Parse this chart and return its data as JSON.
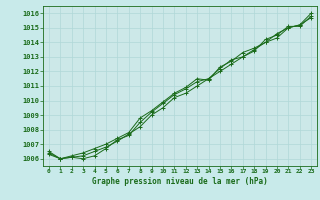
{
  "title": "Graphe pression niveau de la mer (hPa)",
  "background_color": "#c8eaea",
  "plot_bg_color": "#cce8e8",
  "grid_color": "#b0d8d8",
  "line_color": "#1a6b1a",
  "marker_color": "#1a6b1a",
  "xlim": [
    -0.5,
    23.5
  ],
  "ylim": [
    1005.5,
    1016.5
  ],
  "yticks": [
    1006,
    1007,
    1008,
    1009,
    1010,
    1011,
    1012,
    1013,
    1014,
    1015,
    1016
  ],
  "xticks": [
    0,
    1,
    2,
    3,
    4,
    5,
    6,
    7,
    8,
    9,
    10,
    11,
    12,
    13,
    14,
    15,
    16,
    17,
    18,
    19,
    20,
    21,
    22,
    23
  ],
  "series": [
    [
      1006.3,
      1006.0,
      1006.1,
      1006.0,
      1006.2,
      1006.7,
      1007.3,
      1007.6,
      1008.5,
      1009.2,
      1009.8,
      1010.4,
      1010.8,
      1011.3,
      1011.5,
      1012.2,
      1012.8,
      1013.0,
      1013.5,
      1014.0,
      1014.3,
      1015.0,
      1015.2,
      1015.7
    ],
    [
      1006.5,
      1006.0,
      1006.1,
      1006.2,
      1006.5,
      1006.8,
      1007.2,
      1007.7,
      1008.2,
      1009.0,
      1009.5,
      1010.2,
      1010.5,
      1011.0,
      1011.5,
      1012.0,
      1012.5,
      1013.0,
      1013.4,
      1014.2,
      1014.5,
      1015.1,
      1015.1,
      1015.8
    ],
    [
      1006.4,
      1006.0,
      1006.2,
      1006.4,
      1006.7,
      1007.0,
      1007.4,
      1007.8,
      1008.8,
      1009.3,
      1009.9,
      1010.5,
      1010.9,
      1011.5,
      1011.4,
      1012.3,
      1012.7,
      1013.3,
      1013.6,
      1014.0,
      1014.6,
      1015.0,
      1015.2,
      1016.0
    ]
  ],
  "figsize": [
    3.2,
    2.0
  ],
  "dpi": 100
}
